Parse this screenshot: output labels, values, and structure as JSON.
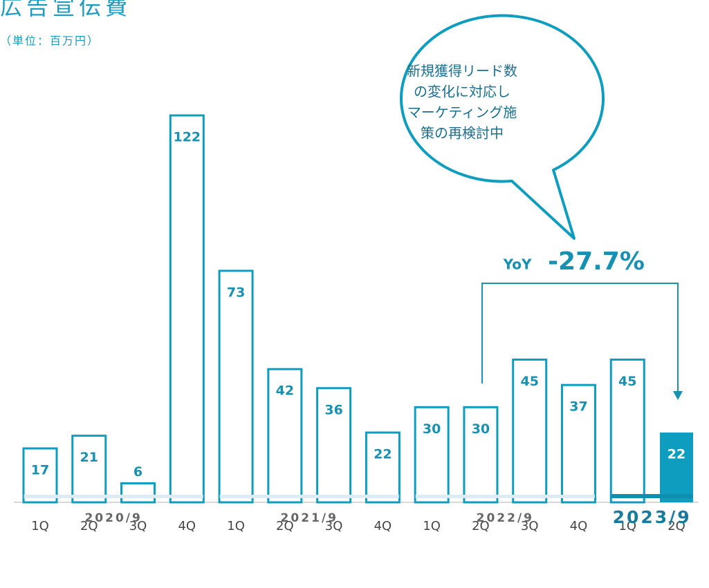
{
  "chart_data": {
    "type": "bar",
    "title": "広告宣伝費",
    "subtitle": "（単位：百万円）",
    "categories": [
      "1Q",
      "2Q",
      "3Q",
      "4Q",
      "1Q",
      "2Q",
      "3Q",
      "4Q",
      "1Q",
      "2Q",
      "3Q",
      "4Q",
      "1Q",
      "2Q"
    ],
    "values": [
      17,
      21,
      6,
      122,
      73,
      42,
      36,
      22,
      30,
      30,
      45,
      37,
      45,
      22
    ],
    "groups": [
      {
        "label": "2020/9",
        "span": 4
      },
      {
        "label": "2021/9",
        "span": 4
      },
      {
        "label": "2022/9",
        "span": 4
      },
      {
        "label": "2023/9",
        "span": 2
      }
    ],
    "color": "#0e9dbf",
    "highlight_index": 13,
    "callout": [
      "新規獲得リード数",
      "の変化に対応し",
      "マーケティング施",
      "策の再検討中"
    ],
    "annotation": {
      "label": "YoY",
      "text": "-27.7%"
    }
  }
}
